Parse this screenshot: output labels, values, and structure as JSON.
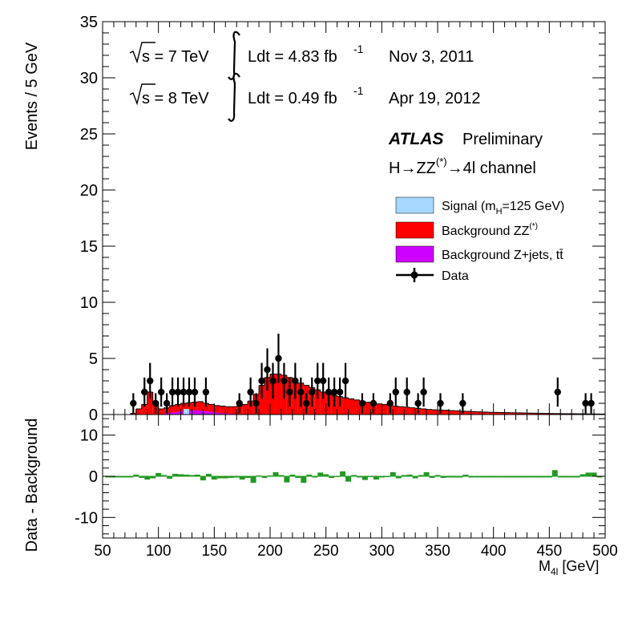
{
  "chart_data": [
    {
      "type": "bar",
      "panel": "main",
      "ylabel": "Events / 5 GeV",
      "ylim": [
        0,
        35
      ],
      "yticks": [
        "0",
        "5",
        "10",
        "15",
        "20",
        "25",
        "30",
        "35"
      ],
      "xlim": [
        50,
        500
      ],
      "annotations": {
        "energy_7": "s = 7 TeV",
        "lumi_7": "Ldt = 4.83 fb",
        "lumi_exp": "-1",
        "date_7": "Nov  3, 2011",
        "energy_8": "s = 8 TeV",
        "lumi_8": "Ldt = 0.49 fb",
        "date_8": "Apr 19, 2012",
        "experiment": "ATLAS",
        "status": "Preliminary",
        "channel": "H→ZZ",
        "channel_sup": "(*)",
        "channel_end": "→4l channel"
      },
      "legend": {
        "placement": "right",
        "entries": [
          {
            "label": "Signal (m",
            "sub": "H",
            "tail": "=125 GeV)",
            "color": "#a6d7ff"
          },
          {
            "label": "Background ZZ",
            "sup": "(*)",
            "color": "#ff0000"
          },
          {
            "label": "Background Z+jets, tt̄",
            "color": "#cc00ff"
          },
          {
            "label": "Data",
            "color": "#000000"
          }
        ]
      },
      "colors": {
        "signal": "#a6d7ff",
        "zz": "#ff0000",
        "zjets": "#cc00ff",
        "data": "#000000"
      },
      "zz_background": [
        [
          50,
          0
        ],
        [
          55,
          0
        ],
        [
          60,
          0
        ],
        [
          65,
          0
        ],
        [
          70,
          0
        ],
        [
          75,
          0.1
        ],
        [
          80,
          0.5
        ],
        [
          85,
          0.9
        ],
        [
          90,
          2.0
        ],
        [
          95,
          1.0
        ],
        [
          100,
          0.5
        ],
        [
          105,
          0.6
        ],
        [
          110,
          0.8
        ],
        [
          115,
          0.9
        ],
        [
          120,
          1.0
        ],
        [
          125,
          1.05
        ],
        [
          130,
          1.1
        ],
        [
          135,
          1.15
        ],
        [
          140,
          1.0
        ],
        [
          145,
          0.9
        ],
        [
          150,
          0.8
        ],
        [
          155,
          0.75
        ],
        [
          160,
          0.7
        ],
        [
          165,
          0.7
        ],
        [
          170,
          0.75
        ],
        [
          175,
          0.9
        ],
        [
          180,
          1.2
        ],
        [
          185,
          1.8
        ],
        [
          190,
          2.6
        ],
        [
          195,
          3.3
        ],
        [
          200,
          3.6
        ],
        [
          205,
          3.6
        ],
        [
          210,
          3.5
        ],
        [
          215,
          3.3
        ],
        [
          220,
          3.1
        ],
        [
          225,
          2.8
        ],
        [
          230,
          2.6
        ],
        [
          235,
          2.4
        ],
        [
          240,
          2.2
        ],
        [
          245,
          2.0
        ],
        [
          250,
          1.85
        ],
        [
          255,
          1.7
        ],
        [
          260,
          1.6
        ],
        [
          265,
          1.5
        ],
        [
          270,
          1.4
        ],
        [
          275,
          1.3
        ],
        [
          280,
          1.2
        ],
        [
          285,
          1.1
        ],
        [
          290,
          1.0
        ],
        [
          295,
          0.95
        ],
        [
          300,
          0.9
        ],
        [
          305,
          0.8
        ],
        [
          310,
          0.75
        ],
        [
          315,
          0.7
        ],
        [
          320,
          0.65
        ],
        [
          325,
          0.6
        ],
        [
          330,
          0.55
        ],
        [
          335,
          0.5
        ],
        [
          340,
          0.45
        ],
        [
          345,
          0.42
        ],
        [
          350,
          0.4
        ],
        [
          355,
          0.38
        ],
        [
          360,
          0.35
        ],
        [
          365,
          0.33
        ],
        [
          370,
          0.3
        ],
        [
          375,
          0.28
        ],
        [
          380,
          0.26
        ],
        [
          385,
          0.24
        ],
        [
          390,
          0.22
        ],
        [
          395,
          0.2
        ],
        [
          400,
          0.19
        ],
        [
          405,
          0.18
        ],
        [
          410,
          0.17
        ],
        [
          415,
          0.16
        ],
        [
          420,
          0.15
        ],
        [
          425,
          0.14
        ],
        [
          430,
          0.13
        ],
        [
          435,
          0.12
        ],
        [
          440,
          0.11
        ],
        [
          445,
          0.1
        ],
        [
          450,
          0.09
        ],
        [
          455,
          0.085
        ],
        [
          460,
          0.08
        ],
        [
          465,
          0.075
        ],
        [
          470,
          0.07
        ],
        [
          475,
          0.065
        ],
        [
          480,
          0.06
        ],
        [
          485,
          0.055
        ],
        [
          490,
          0.05
        ],
        [
          495,
          0.045
        ]
      ],
      "zjets_background": [
        [
          105,
          0.1
        ],
        [
          110,
          0.18
        ],
        [
          115,
          0.25
        ],
        [
          120,
          0.3
        ],
        [
          125,
          0.35
        ],
        [
          130,
          0.38
        ],
        [
          135,
          0.35
        ],
        [
          140,
          0.3
        ],
        [
          145,
          0.25
        ],
        [
          150,
          0.18
        ],
        [
          155,
          0.12
        ],
        [
          160,
          0.08
        ],
        [
          165,
          0.05
        ]
      ],
      "signal_mass": 125,
      "data": [
        [
          77.5,
          1,
          0.9
        ],
        [
          87.5,
          2,
          1.3
        ],
        [
          92.5,
          3,
          1.6
        ],
        [
          97.5,
          1,
          0.9
        ],
        [
          102.5,
          2,
          1.3
        ],
        [
          107.5,
          1,
          0.9
        ],
        [
          112.5,
          2,
          1.3
        ],
        [
          117.5,
          2,
          1.3
        ],
        [
          122.5,
          2,
          1.3
        ],
        [
          127.5,
          2,
          1.3
        ],
        [
          132.5,
          2,
          1.3
        ],
        [
          142.5,
          2,
          1.3
        ],
        [
          172.5,
          1,
          0.9
        ],
        [
          182.5,
          2,
          1.3
        ],
        [
          187.5,
          1,
          0.9
        ],
        [
          192.5,
          3,
          1.6
        ],
        [
          197.5,
          4,
          1.9
        ],
        [
          202.5,
          3,
          1.6
        ],
        [
          207.5,
          5,
          2.2
        ],
        [
          212.5,
          3,
          1.6
        ],
        [
          217.5,
          2,
          1.3
        ],
        [
          222.5,
          3,
          1.6
        ],
        [
          227.5,
          2,
          1.3
        ],
        [
          232.5,
          1,
          0.9
        ],
        [
          237.5,
          2,
          1.3
        ],
        [
          242.5,
          3,
          1.6
        ],
        [
          247.5,
          3,
          1.6
        ],
        [
          252.5,
          2,
          1.3
        ],
        [
          257.5,
          2,
          1.3
        ],
        [
          262.5,
          2,
          1.3
        ],
        [
          267.5,
          3,
          1.6
        ],
        [
          282.5,
          1,
          0.9
        ],
        [
          292.5,
          1,
          0.9
        ],
        [
          307.5,
          1,
          0.9
        ],
        [
          312.5,
          2,
          1.3
        ],
        [
          322.5,
          2,
          1.3
        ],
        [
          332.5,
          1,
          0.9
        ],
        [
          337.5,
          2,
          1.3
        ],
        [
          352.5,
          1,
          0.9
        ],
        [
          372.5,
          1,
          0.9
        ],
        [
          457.5,
          2,
          1.3
        ],
        [
          482.5,
          1,
          0.9
        ],
        [
          487.5,
          1,
          0.9
        ]
      ]
    },
    {
      "type": "bar",
      "panel": "ratio",
      "ylabel": "Data - Background",
      "xlabel": "M",
      "xlabel_sub": "4l",
      "xlabel_unit": " [GeV]",
      "ylim": [
        -15,
        15
      ],
      "yticks": [
        "10",
        "0",
        "-10"
      ],
      "xticks": [
        "50",
        "100",
        "150",
        "200",
        "250",
        "300",
        "350",
        "400",
        "450",
        "500"
      ],
      "xlim": [
        50,
        500
      ],
      "color": "#229922",
      "residuals": [
        [
          55,
          0
        ],
        [
          60,
          0
        ],
        [
          65,
          0
        ],
        [
          70,
          0
        ],
        [
          75,
          0
        ],
        [
          80,
          0.4
        ],
        [
          85,
          -0.4
        ],
        [
          90,
          -0.8
        ],
        [
          95,
          -0.5
        ],
        [
          100,
          0.8
        ],
        [
          105,
          0.3
        ],
        [
          110,
          -0.6
        ],
        [
          115,
          0.6
        ],
        [
          120,
          0.5
        ],
        [
          125,
          0.4
        ],
        [
          130,
          0.3
        ],
        [
          135,
          0.4
        ],
        [
          140,
          -1.0
        ],
        [
          145,
          0.6
        ],
        [
          150,
          -0.8
        ],
        [
          155,
          -0.5
        ],
        [
          160,
          -0.5
        ],
        [
          165,
          -0.4
        ],
        [
          170,
          -0.3
        ],
        [
          175,
          -0.8
        ],
        [
          180,
          -0.4
        ],
        [
          185,
          -1.6
        ],
        [
          190,
          0.2
        ],
        [
          195,
          -0.4
        ],
        [
          200,
          0.2
        ],
        [
          205,
          1.0
        ],
        [
          210,
          0.3
        ],
        [
          215,
          -1.5
        ],
        [
          220,
          0.4
        ],
        [
          225,
          -0.4
        ],
        [
          230,
          -1.6
        ],
        [
          235,
          0.4
        ],
        [
          240,
          -0.2
        ],
        [
          245,
          0.9
        ],
        [
          250,
          0.5
        ],
        [
          255,
          -0.4
        ],
        [
          260,
          0.1
        ],
        [
          265,
          1.2
        ],
        [
          270,
          -1.3
        ],
        [
          275,
          0.3
        ],
        [
          280,
          -0.2
        ],
        [
          285,
          -0.9
        ],
        [
          290,
          0.1
        ],
        [
          295,
          -0.8
        ],
        [
          300,
          -0.2
        ],
        [
          305,
          0.1
        ],
        [
          310,
          1.0
        ],
        [
          315,
          -0.5
        ],
        [
          320,
          0.3
        ],
        [
          325,
          0.4
        ],
        [
          330,
          -0.5
        ],
        [
          335,
          0.3
        ],
        [
          340,
          1.0
        ],
        [
          345,
          -0.4
        ],
        [
          350,
          0.3
        ],
        [
          355,
          -0.4
        ],
        [
          360,
          -0.1
        ],
        [
          365,
          -0.3
        ],
        [
          370,
          -0.3
        ],
        [
          375,
          0.4
        ],
        [
          380,
          -0.3
        ],
        [
          385,
          -0.2
        ],
        [
          390,
          -0.2
        ],
        [
          395,
          -0.2
        ],
        [
          400,
          -0.2
        ],
        [
          405,
          -0.2
        ],
        [
          410,
          -0.15
        ],
        [
          415,
          -0.15
        ],
        [
          420,
          -0.15
        ],
        [
          425,
          -0.1
        ],
        [
          430,
          -0.1
        ],
        [
          435,
          -0.1
        ],
        [
          440,
          -0.1
        ],
        [
          445,
          -0.1
        ],
        [
          450,
          -0.1
        ],
        [
          455,
          1.5
        ],
        [
          460,
          -0.1
        ],
        [
          465,
          -0.05
        ],
        [
          470,
          -0.05
        ],
        [
          475,
          -0.05
        ],
        [
          480,
          0.5
        ],
        [
          485,
          0.9
        ],
        [
          490,
          0.9
        ],
        [
          495,
          -0.05
        ]
      ]
    }
  ]
}
